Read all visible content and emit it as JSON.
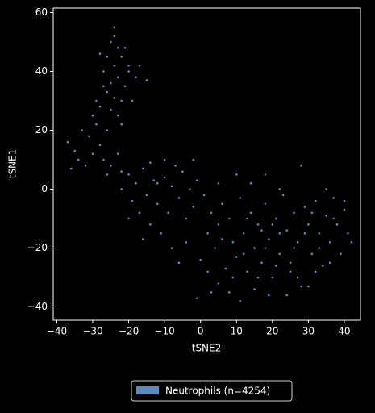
{
  "chart_data": {
    "type": "scatter",
    "x_label": "tSNE2",
    "y_label": "tSNE1",
    "xlim": [
      -41,
      44.5
    ],
    "ylim": [
      -44.5,
      61.5
    ],
    "xticks": [
      {
        "value": -40,
        "label": "−40"
      },
      {
        "value": -30,
        "label": "−30"
      },
      {
        "value": -20,
        "label": "−20"
      },
      {
        "value": -10,
        "label": "−10"
      },
      0,
      10,
      20,
      30,
      40
    ],
    "yticks": [
      {
        "value": -40,
        "label": "−40"
      },
      {
        "value": -20,
        "label": "−20"
      },
      0,
      20,
      40,
      60
    ],
    "legend": "lower center",
    "x": [
      -24,
      -25,
      -23,
      -26,
      -22,
      -24,
      -20,
      -27,
      -23,
      -25,
      -21,
      -26,
      -24,
      -22,
      -28,
      -25,
      -23,
      -20,
      -18,
      -19,
      -27,
      -29,
      -22,
      -26,
      -24,
      -21,
      -17,
      -15,
      -28,
      -30,
      -37,
      -35,
      -33,
      -31,
      -30,
      -28,
      -27,
      -25,
      -23,
      -32,
      -34,
      -29,
      -26,
      -22,
      -36,
      -20,
      -18,
      -16,
      -15,
      -13,
      -12,
      -10,
      -9,
      -8,
      -6,
      -5,
      -4,
      -3,
      -2,
      -1,
      -19,
      -17,
      -14,
      -11,
      -8,
      -6,
      -4,
      -16,
      -12,
      -7,
      -22,
      -20,
      -10,
      -2,
      -14,
      1,
      3,
      5,
      2,
      4,
      6,
      8,
      9,
      10,
      11,
      12,
      13,
      14,
      15,
      16,
      17,
      18,
      19,
      20,
      21,
      22,
      23,
      24,
      25,
      26,
      27,
      28,
      29,
      30,
      31,
      32,
      33,
      34,
      35,
      36,
      37,
      38,
      39,
      40,
      41,
      2,
      5,
      8,
      11,
      15,
      19,
      24,
      30,
      0,
      7,
      12,
      18,
      22,
      26,
      32,
      36,
      40,
      42,
      3,
      -1,
      28,
      18,
      10,
      5,
      14,
      22,
      35,
      25,
      20,
      16,
      9,
      6,
      13,
      27,
      33,
      37,
      29,
      31,
      21,
      17
    ],
    "series": [
      {
        "name": "Neutrophils (n=4254)",
        "color": "#5b8bc0",
        "values": [
          55,
          50,
          48,
          45,
          45,
          42,
          40,
          40,
          38,
          36,
          35,
          33,
          31,
          30,
          28,
          27,
          25,
          42,
          38,
          30,
          35,
          30,
          22,
          20,
          52,
          48,
          42,
          37,
          46,
          25,
          16,
          13,
          20,
          18,
          12,
          15,
          10,
          8,
          12,
          8,
          10,
          22,
          5,
          6,
          7,
          5,
          2,
          7,
          -2,
          3,
          -5,
          4,
          -8,
          1,
          -3,
          6,
          -10,
          0,
          -6,
          3,
          -4,
          -8,
          -12,
          -15,
          -20,
          -25,
          -18,
          -17,
          2,
          8,
          0,
          -10,
          10,
          10,
          9,
          -2,
          -8,
          -12,
          -15,
          -20,
          -5,
          -10,
          -18,
          -23,
          -3,
          -15,
          -28,
          -8,
          -20,
          -12,
          -25,
          -5,
          -17,
          -30,
          -10,
          -22,
          -2,
          -14,
          -28,
          -8,
          -18,
          -33,
          -6,
          -12,
          -22,
          -4,
          -15,
          -26,
          -9,
          -18,
          -3,
          -12,
          -22,
          -7,
          -15,
          -28,
          -32,
          -35,
          -38,
          -34,
          -36,
          -36,
          -33,
          -24,
          -27,
          -22,
          -20,
          -15,
          -20,
          -28,
          -25,
          -4,
          -18,
          -35,
          -37,
          8,
          5,
          5,
          2,
          2,
          0,
          0,
          -25,
          -12,
          -30,
          -30,
          -17,
          -10,
          -30,
          -20,
          -10,
          -15,
          -8,
          -26,
          -14
        ]
      }
    ]
  }
}
